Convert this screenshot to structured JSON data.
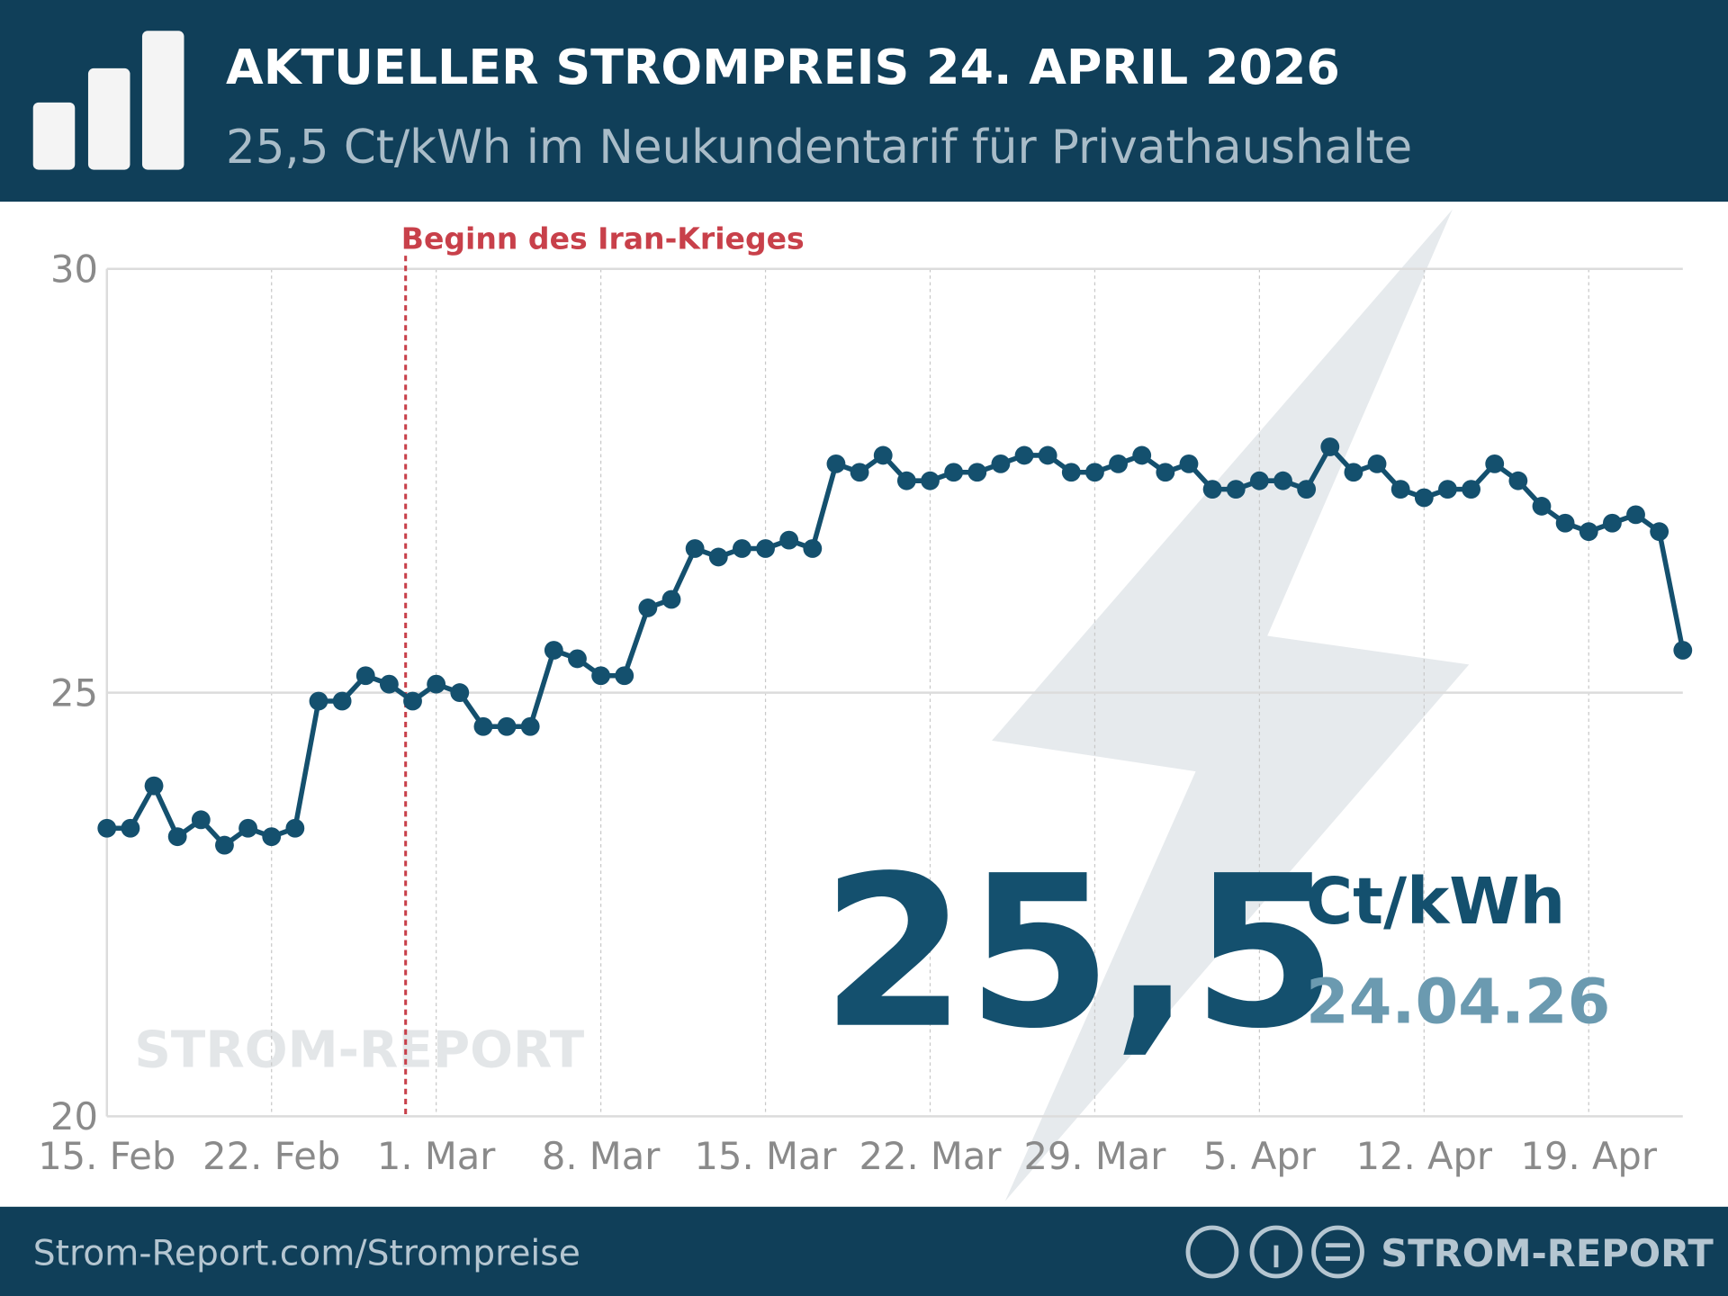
{
  "header": {
    "title": "AKTUELLER STROMPREIS 24. APRIL 2026",
    "subtitle": "25,5 Ct/kWh im Neukundentarif für Privathaushalte"
  },
  "highlight": {
    "value": "25,5",
    "unit": "Ct/kWh",
    "date": "24.04.26"
  },
  "watermark": "STROM-REPORT",
  "footer": {
    "url": "Strom-Report.com/Strompreise",
    "brand": "STROM-REPORT"
  },
  "chart_data": {
    "type": "line",
    "categories": [
      "15. Feb",
      null,
      null,
      null,
      null,
      null,
      null,
      "22. Feb",
      null,
      null,
      null,
      null,
      null,
      null,
      "1. Mar",
      null,
      null,
      null,
      null,
      null,
      null,
      "8. Mar",
      null,
      null,
      null,
      null,
      null,
      null,
      "15. Mar",
      null,
      null,
      null,
      null,
      null,
      null,
      "22. Mar",
      null,
      null,
      null,
      null,
      null,
      null,
      "29. Mar",
      null,
      null,
      null,
      null,
      null,
      null,
      "5. Apr",
      null,
      null,
      null,
      null,
      null,
      null,
      "12. Apr",
      null,
      null,
      null,
      null,
      null,
      null,
      "19. Apr",
      null,
      null,
      null,
      null
    ],
    "series": [
      {
        "color": "#14506e",
        "values": [
          23.4,
          23.4,
          23.9,
          23.3,
          23.5,
          23.2,
          23.4,
          23.3,
          23.4,
          24.9,
          24.9,
          25.2,
          25.1,
          24.9,
          25.1,
          25.0,
          24.6,
          24.6,
          24.6,
          25.5,
          25.4,
          25.2,
          25.2,
          26.0,
          26.1,
          26.7,
          26.6,
          26.7,
          26.7,
          26.8,
          26.7,
          27.7,
          27.6,
          27.8,
          27.5,
          27.5,
          27.6,
          27.6,
          27.7,
          27.8,
          27.8,
          27.6,
          27.6,
          27.7,
          27.8,
          27.6,
          27.7,
          27.4,
          27.4,
          27.5,
          27.5,
          27.4,
          27.9,
          27.6,
          27.7,
          27.4,
          27.3,
          27.4,
          27.4,
          27.7,
          27.5,
          27.2,
          27.0,
          26.9,
          27.0,
          27.1,
          26.9,
          25.5
        ]
      }
    ],
    "ylim": [
      20,
      30
    ],
    "yticks": [
      20,
      25,
      30
    ],
    "grid": true,
    "annotations": [
      {
        "text": "Beginn des Iran-Krieges",
        "x": 12.7,
        "color": "#c8404a"
      }
    ]
  }
}
